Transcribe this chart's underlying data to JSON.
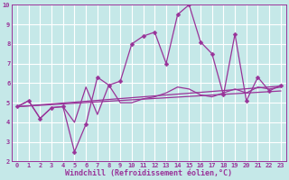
{
  "xlabel": "Windchill (Refroidissement éolien,°C)",
  "xlim": [
    -0.5,
    23.5
  ],
  "ylim": [
    2,
    10
  ],
  "xticks": [
    0,
    1,
    2,
    3,
    4,
    5,
    6,
    7,
    8,
    9,
    10,
    11,
    12,
    13,
    14,
    15,
    16,
    17,
    18,
    19,
    20,
    21,
    22,
    23
  ],
  "yticks": [
    2,
    3,
    4,
    5,
    6,
    7,
    8,
    9,
    10
  ],
  "background_color": "#c5e8e8",
  "grid_color": "#ffffff",
  "line_color": "#993399",
  "lines": [
    {
      "x": [
        0,
        1,
        2,
        3,
        4,
        5,
        6,
        7,
        8,
        9,
        10,
        11,
        12,
        13,
        14,
        15,
        16,
        17,
        18,
        19,
        20,
        21,
        22,
        23
      ],
      "y": [
        4.8,
        5.1,
        4.2,
        4.75,
        4.8,
        2.5,
        3.9,
        6.3,
        5.9,
        6.1,
        8.0,
        8.4,
        8.6,
        7.0,
        9.5,
        10.0,
        8.1,
        7.5,
        5.4,
        8.5,
        5.1,
        6.3,
        5.6,
        5.9
      ],
      "marker": true
    },
    {
      "x": [
        0,
        1,
        2,
        3,
        4,
        5,
        6,
        7,
        8,
        9,
        10,
        11,
        12,
        13,
        14,
        15,
        16,
        17,
        18,
        19,
        20,
        21,
        22,
        23
      ],
      "y": [
        4.8,
        5.1,
        4.2,
        4.75,
        4.8,
        4.0,
        5.8,
        4.4,
        5.9,
        5.0,
        5.0,
        5.2,
        5.3,
        5.5,
        5.8,
        5.7,
        5.4,
        5.3,
        5.5,
        5.7,
        5.5,
        5.8,
        5.7,
        5.8
      ],
      "marker": false
    },
    {
      "x": [
        0,
        23
      ],
      "y": [
        4.8,
        5.85
      ],
      "marker": false
    },
    {
      "x": [
        0,
        23
      ],
      "y": [
        4.8,
        5.6
      ],
      "marker": false
    }
  ],
  "markersize": 2.5,
  "linewidth": 0.9,
  "tick_fontsize": 5.0,
  "xlabel_fontsize": 6.0
}
